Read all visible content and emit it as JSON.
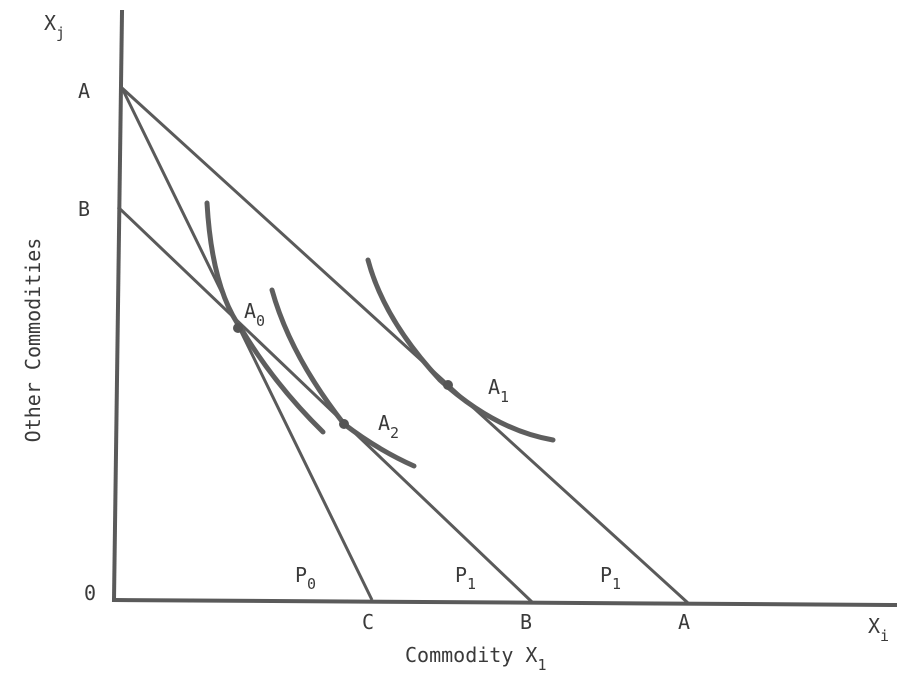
{
  "axes": {
    "y_symbol": "X",
    "y_symbol_sub": "j",
    "x_symbol": "X",
    "x_symbol_sub": "i",
    "y_title": "Other Commodities",
    "x_title_main": "Commodity X",
    "x_title_sub": "1",
    "origin": "0"
  },
  "y_intercepts": {
    "a": "A",
    "b": "B"
  },
  "x_intercepts": {
    "c": "C",
    "b": "B",
    "a": "A"
  },
  "price_labels": {
    "p0": {
      "main": "P",
      "sub": "0"
    },
    "p1_inner": {
      "main": "P",
      "sub": "1"
    },
    "p1_outer": {
      "main": "P",
      "sub": "1"
    }
  },
  "points": {
    "a0": {
      "main": "A",
      "sub": "0"
    },
    "a1": {
      "main": "A",
      "sub": "1"
    },
    "a2": {
      "main": "A",
      "sub": "2"
    }
  }
}
